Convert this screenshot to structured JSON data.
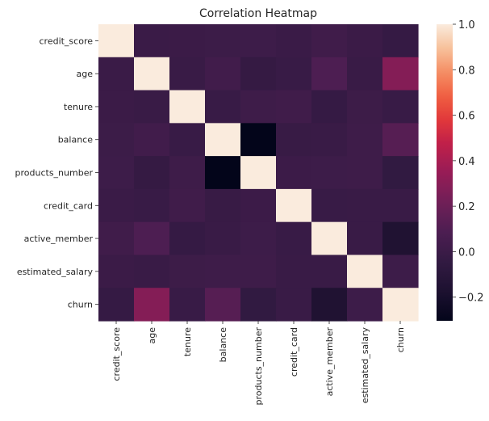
{
  "chart_data": {
    "type": "heatmap",
    "title": "Correlation Heatmap",
    "xlabel": "",
    "ylabel": "",
    "row_labels": [
      "credit_score",
      "age",
      "tenure",
      "balance",
      "products_number",
      "credit_card",
      "active_member",
      "estimated_salary",
      "churn"
    ],
    "col_labels": [
      "credit_score",
      "age",
      "tenure",
      "balance",
      "products_number",
      "credit_card",
      "active_member",
      "estimated_salary",
      "churn"
    ],
    "values": [
      [
        1.0,
        -0.004,
        0.001,
        0.006,
        0.012,
        -0.005,
        0.026,
        -0.001,
        -0.027
      ],
      [
        -0.004,
        1.0,
        -0.01,
        0.028,
        -0.031,
        -0.012,
        0.085,
        -0.007,
        0.285
      ],
      [
        0.001,
        -0.01,
        1.0,
        -0.012,
        0.013,
        0.023,
        -0.028,
        0.008,
        -0.014
      ],
      [
        0.006,
        0.028,
        -0.012,
        1.0,
        -0.304,
        -0.015,
        -0.01,
        0.013,
        0.119
      ],
      [
        0.012,
        -0.031,
        0.013,
        -0.304,
        1.0,
        0.003,
        0.01,
        0.014,
        -0.048
      ],
      [
        -0.005,
        -0.012,
        0.023,
        -0.015,
        0.003,
        1.0,
        -0.012,
        -0.01,
        -0.007
      ],
      [
        0.026,
        0.085,
        -0.028,
        -0.01,
        0.01,
        -0.012,
        1.0,
        -0.011,
        -0.156
      ],
      [
        -0.001,
        -0.007,
        0.008,
        0.013,
        0.014,
        -0.01,
        -0.011,
        1.0,
        0.012
      ],
      [
        -0.027,
        0.285,
        -0.014,
        0.119,
        -0.048,
        -0.007,
        -0.156,
        0.012,
        1.0
      ]
    ],
    "colorbar": {
      "min": -0.304,
      "max": 1.0,
      "ticks": [
        1.0,
        0.8,
        0.6,
        0.4,
        0.2,
        0.0,
        -0.2
      ],
      "tick_labels": [
        "1.0",
        "0.8",
        "0.6",
        "0.4",
        "0.2",
        "0.0",
        "−0.2"
      ]
    },
    "grid": false,
    "legend": "colorbar-right"
  }
}
